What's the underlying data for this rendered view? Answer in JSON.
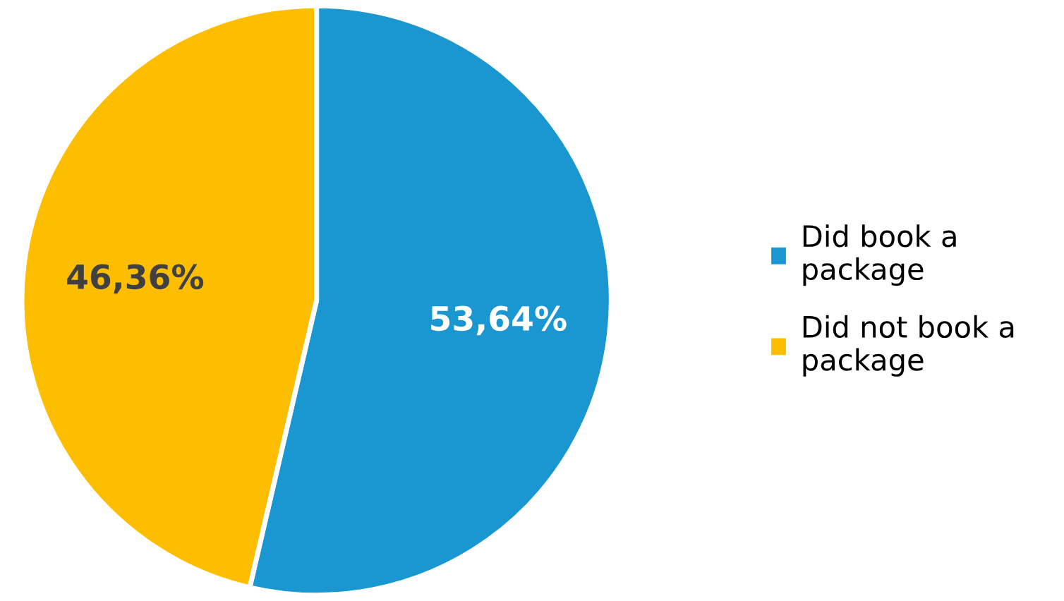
{
  "chart_data": {
    "type": "pie",
    "categories": [
      "Did book a package",
      "Did not book a package"
    ],
    "values": [
      53.64,
      46.36
    ],
    "colors": [
      "#1a96d0",
      "#fdbd00"
    ],
    "value_labels": [
      "53,64%",
      "46,36%"
    ],
    "legend": "right"
  }
}
